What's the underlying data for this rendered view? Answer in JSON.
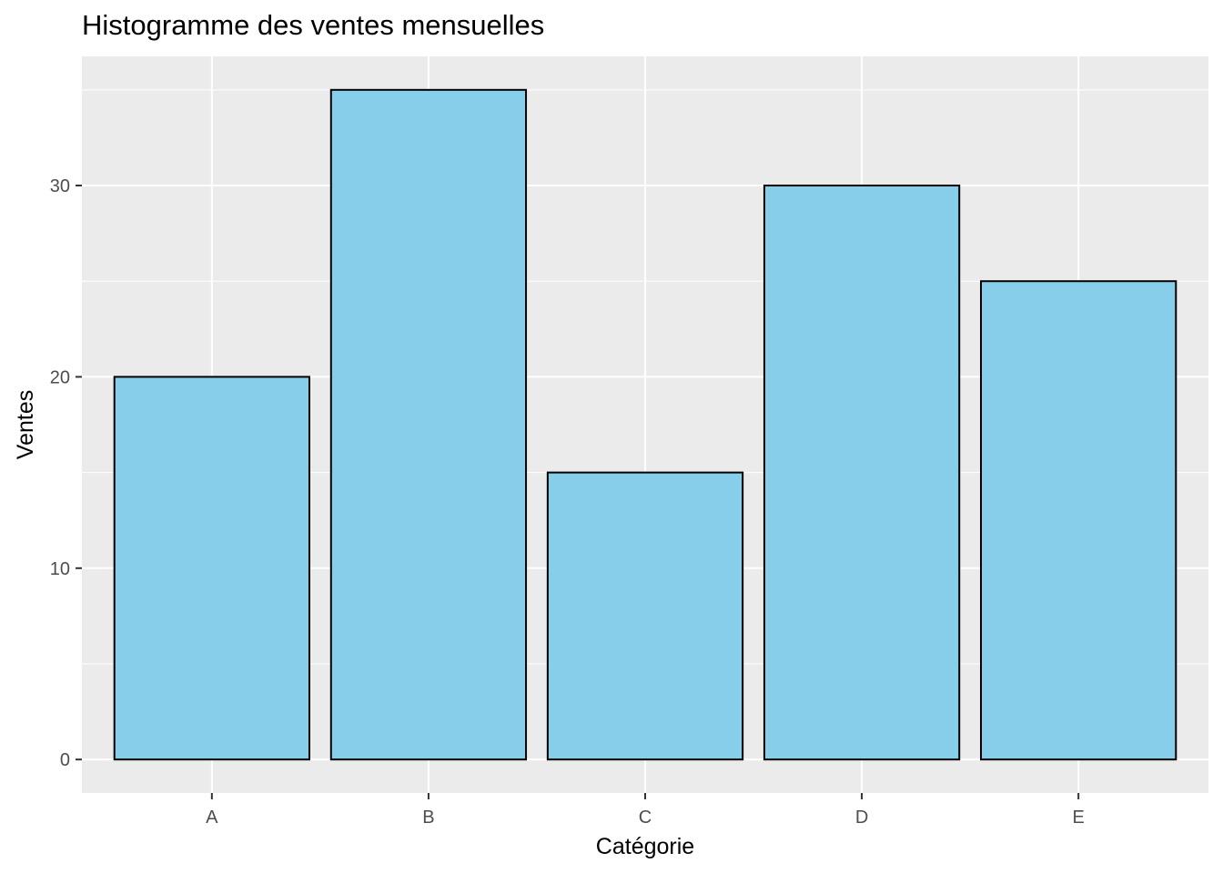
{
  "chart_data": {
    "type": "bar",
    "title": "Histogramme des ventes mensuelles",
    "xlabel": "Catégorie",
    "ylabel": "Ventes",
    "categories": [
      "A",
      "B",
      "C",
      "D",
      "E"
    ],
    "values": [
      20,
      35,
      15,
      30,
      25
    ],
    "ylim": [
      -1.75,
      36.75
    ],
    "yticks": [
      0,
      10,
      20,
      30
    ],
    "grid": true,
    "legend": "none",
    "colors": {
      "bar_fill": "#87CEEB",
      "bar_stroke": "#000000",
      "panel_background": "#EBEBEB",
      "grid_major": "#FFFFFF",
      "tick_text": "#4D4D4D"
    }
  }
}
